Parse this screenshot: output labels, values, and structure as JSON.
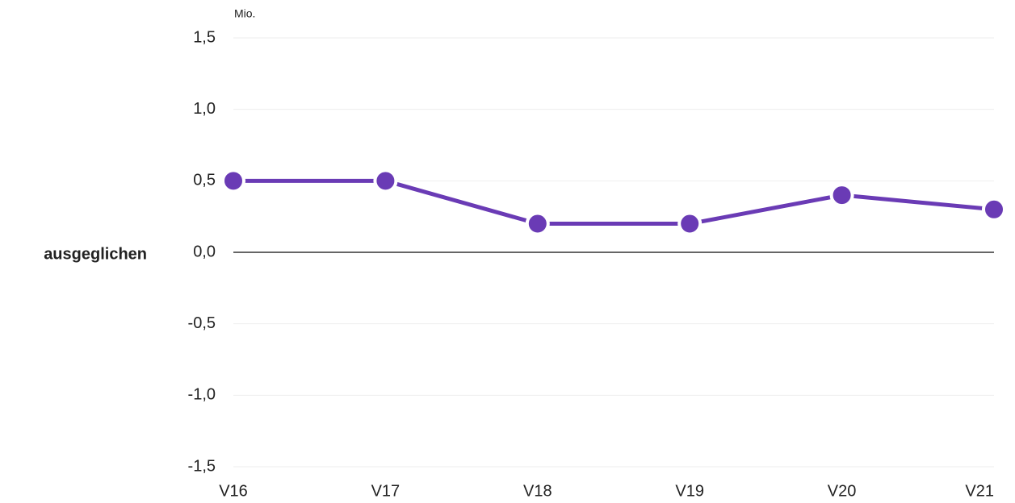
{
  "chart_data": {
    "type": "line",
    "y_unit": "Mio.",
    "annotation": "ausgeglichen",
    "categories": [
      "V16",
      "V17",
      "V18",
      "V19",
      "V20",
      "V21"
    ],
    "series": [
      {
        "name": "ausgeglichen",
        "color": "#6a3bb5",
        "values": [
          0.5,
          0.5,
          0.2,
          0.2,
          0.4,
          0.3
        ]
      }
    ],
    "ylim": [
      -1.5,
      1.5
    ],
    "yticks": [
      {
        "value": -1.5,
        "label": "-1,5"
      },
      {
        "value": -1.0,
        "label": "-1,0"
      },
      {
        "value": -0.5,
        "label": "-0,5"
      },
      {
        "value": 0,
        "label": "0,0"
      },
      {
        "value": 0.5,
        "label": "0,5"
      },
      {
        "value": 1.0,
        "label": "1,0"
      },
      {
        "value": 1.5,
        "label": "1,5"
      }
    ],
    "grid": true
  }
}
